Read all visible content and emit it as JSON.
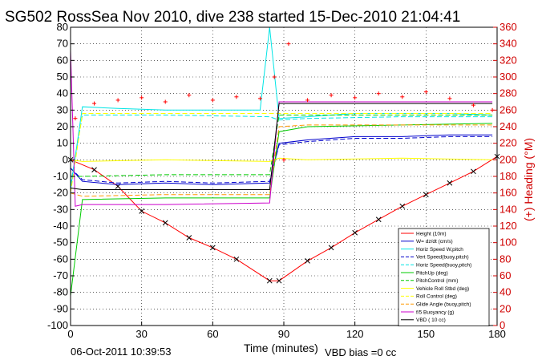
{
  "chart_data": {
    "type": "line",
    "title": "SG502 RossSea Nov 2010, dive 238 started 15-Dec-2010 21:04:41",
    "xlabel": "Time (minutes)",
    "ylabel_right": "(+) Heading (°M)",
    "xlim": [
      0,
      180
    ],
    "ylim": [
      -100,
      80
    ],
    "ylim_right": [
      0,
      360
    ],
    "xticks": [
      0,
      30,
      60,
      90,
      120,
      150,
      180
    ],
    "yticks": [
      -100,
      -90,
      -80,
      -70,
      -60,
      -50,
      -40,
      -30,
      -20,
      -10,
      0,
      10,
      20,
      30,
      40,
      50,
      60,
      70,
      80
    ],
    "yticks_right": [
      0,
      20,
      40,
      60,
      80,
      100,
      120,
      140,
      160,
      180,
      200,
      220,
      240,
      260,
      280,
      300,
      320,
      340,
      360
    ],
    "grid": true,
    "legend_position": "bottom-right",
    "colors": {
      "height": "#ff0000",
      "w": "#0000cc",
      "horiz_speed": "#00e5e5",
      "pitch": "#00cc00",
      "roll": "#ffff00",
      "glide": "#ff9900",
      "buoyancy": "#cc00cc",
      "vbd": "#000000",
      "heading": "#ff0000"
    },
    "series": [
      {
        "name": "Height (10m)",
        "style": "solid",
        "color": "#ff0000",
        "x": [
          0,
          10,
          20,
          30,
          40,
          50,
          60,
          70,
          84,
          88,
          100,
          110,
          120,
          130,
          140,
          150,
          160,
          170,
          180
        ],
        "y": [
          0,
          -6,
          -16,
          -31,
          -38,
          -47,
          -53,
          -60,
          -73,
          -73,
          -61,
          -53,
          -44,
          -36,
          -28,
          -21,
          -14,
          -7,
          2
        ]
      },
      {
        "name": "W= dz/dt (cm/s)",
        "style": "solid",
        "color": "#0000cc",
        "x": [
          0,
          5,
          20,
          40,
          60,
          84,
          88,
          100,
          120,
          140,
          160,
          178
        ],
        "y": [
          -5,
          -13,
          -15,
          -14,
          -15,
          -14,
          10,
          12,
          14,
          14,
          15,
          15
        ]
      },
      {
        "name": "Horiz Speed W,pitch",
        "style": "solid",
        "color": "#00e5e5",
        "x": [
          0,
          5,
          20,
          40,
          60,
          80,
          84,
          88,
          100,
          120,
          140,
          160,
          178
        ],
        "y": [
          -18,
          32,
          31,
          30,
          30,
          30,
          80,
          25,
          26,
          28,
          28,
          28,
          27
        ]
      },
      {
        "name": "Vert Speed(buoy,pitch)",
        "style": "dashed",
        "color": "#0000cc",
        "x": [
          0,
          5,
          20,
          40,
          60,
          84,
          88,
          100,
          120,
          140,
          160,
          178
        ],
        "y": [
          -5,
          -12,
          -14,
          -13,
          -14,
          -13,
          9,
          11,
          13,
          13,
          14,
          14
        ]
      },
      {
        "name": "Horiz Speed(buoy,pitch)",
        "style": "dashed",
        "color": "#00e5e5",
        "x": [
          0,
          5,
          40,
          84,
          88,
          100,
          140,
          178
        ],
        "y": [
          -15,
          27,
          27,
          26,
          24,
          25,
          26,
          26
        ]
      },
      {
        "name": "PitchUp (deg)",
        "style": "solid",
        "color": "#00cc00",
        "x": [
          0,
          5,
          40,
          84,
          88,
          100,
          140,
          178
        ],
        "y": [
          -82,
          -24,
          -23,
          -23,
          17,
          20,
          21,
          22
        ]
      },
      {
        "name": "PitchControl (mm)",
        "style": "dashed",
        "color": "#00cc00",
        "x": [
          0,
          5,
          40,
          84,
          88,
          100,
          140,
          178
        ],
        "y": [
          -10,
          -10,
          -9,
          -9,
          27,
          27,
          27,
          27
        ]
      },
      {
        "name": "Vehicle Roll Stbd (deg)",
        "style": "solid",
        "color": "#ffff00",
        "x": [
          0,
          5,
          40,
          84,
          88,
          100,
          140,
          178
        ],
        "y": [
          0,
          -1,
          0,
          -1,
          1,
          0,
          1,
          0
        ]
      },
      {
        "name": "Roll Control (deg)",
        "style": "dashed",
        "color": "#ffff00",
        "x": [
          0,
          5,
          40,
          84,
          88,
          100,
          140,
          178
        ],
        "y": [
          -20,
          28,
          28,
          28,
          28,
          28,
          28,
          28
        ]
      },
      {
        "name": "Glide Angle (buoy,pitch)",
        "style": "dashed",
        "color": "#ff9900",
        "x": [
          0,
          5,
          40,
          84,
          88,
          100,
          140,
          178
        ],
        "y": [
          -20,
          -22,
          -21,
          -21,
          20,
          21,
          21,
          21
        ]
      },
      {
        "name": "f/5 Buoyancy (g)",
        "style": "solid",
        "color": "#cc00cc",
        "x": [
          0,
          2,
          5,
          40,
          84,
          88,
          100,
          140,
          178
        ],
        "y": [
          66,
          -28,
          -27,
          -27,
          -26,
          35,
          35,
          35,
          35
        ]
      },
      {
        "name": "VBD ( 10 cc)",
        "style": "solid",
        "color": "#000000",
        "x": [
          0,
          5,
          40,
          84,
          88,
          100,
          140,
          178
        ],
        "y": [
          -17,
          -18,
          -18,
          -18,
          34,
          34,
          34,
          34
        ]
      },
      {
        "name": "Heading",
        "axis": "right",
        "style": "markers",
        "color": "#ff0000",
        "x": [
          2,
          10,
          20,
          30,
          40,
          50,
          60,
          70,
          80,
          86,
          90,
          92,
          100,
          110,
          120,
          130,
          140,
          150,
          160,
          170,
          178
        ],
        "y": [
          250,
          268,
          272,
          275,
          270,
          278,
          272,
          276,
          274,
          300,
          200,
          340,
          272,
          278,
          275,
          280,
          276,
          282,
          274,
          266,
          260
        ]
      }
    ],
    "footer_left": "06-Oct-2011 10:39:53",
    "footer_right": "VBD bias =0 cc"
  }
}
